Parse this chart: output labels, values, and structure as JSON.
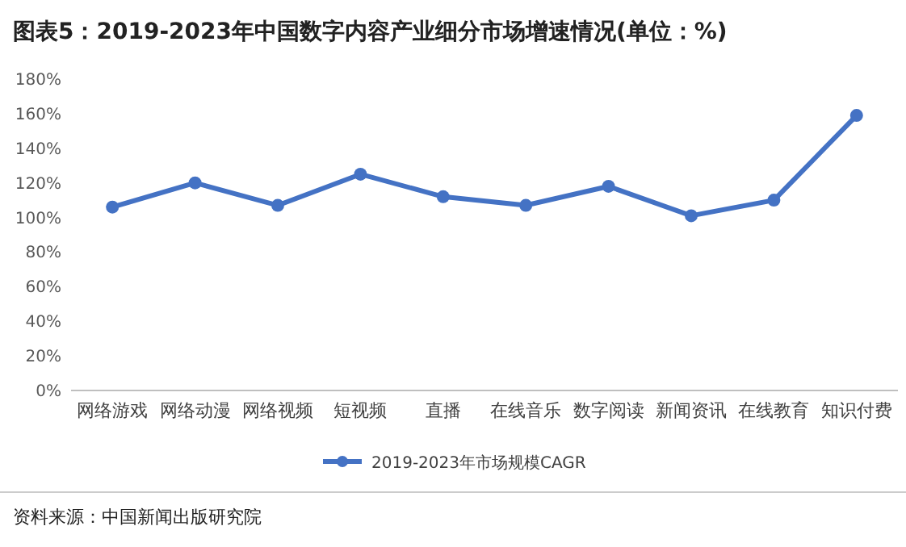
{
  "chart_data": {
    "type": "line",
    "title": "图表5：2019-2023年中国数字内容产业细分市场增速情况(单位：%)",
    "categories": [
      "网络游戏",
      "网络动漫",
      "网络视频",
      "短视频",
      "直播",
      "在线音乐",
      "数字阅读",
      "新闻资讯",
      "在线教育",
      "知识付费"
    ],
    "series": [
      {
        "name": "2019-2023年市场规模CAGR",
        "color": "#4472c4",
        "values": [
          106,
          120,
          107,
          125,
          112,
          107,
          118,
          101,
          110,
          159
        ]
      }
    ],
    "ylim": [
      0,
      180
    ],
    "yticks": [
      {
        "value": 0,
        "label": "0%"
      },
      {
        "value": 20,
        "label": "20%"
      },
      {
        "value": 40,
        "label": "40%"
      },
      {
        "value": 60,
        "label": "60%"
      },
      {
        "value": 80,
        "label": "80%"
      },
      {
        "value": 100,
        "label": "100%"
      },
      {
        "value": 120,
        "label": "120%"
      },
      {
        "value": 140,
        "label": "140%"
      },
      {
        "value": 160,
        "label": "160%"
      },
      {
        "value": 180,
        "label": "180%"
      }
    ],
    "grid": false,
    "legend": "bottom",
    "marker": "circle",
    "line_style": "solid",
    "annotations": [
      "资料来源：中国新闻出版研究院"
    ]
  }
}
